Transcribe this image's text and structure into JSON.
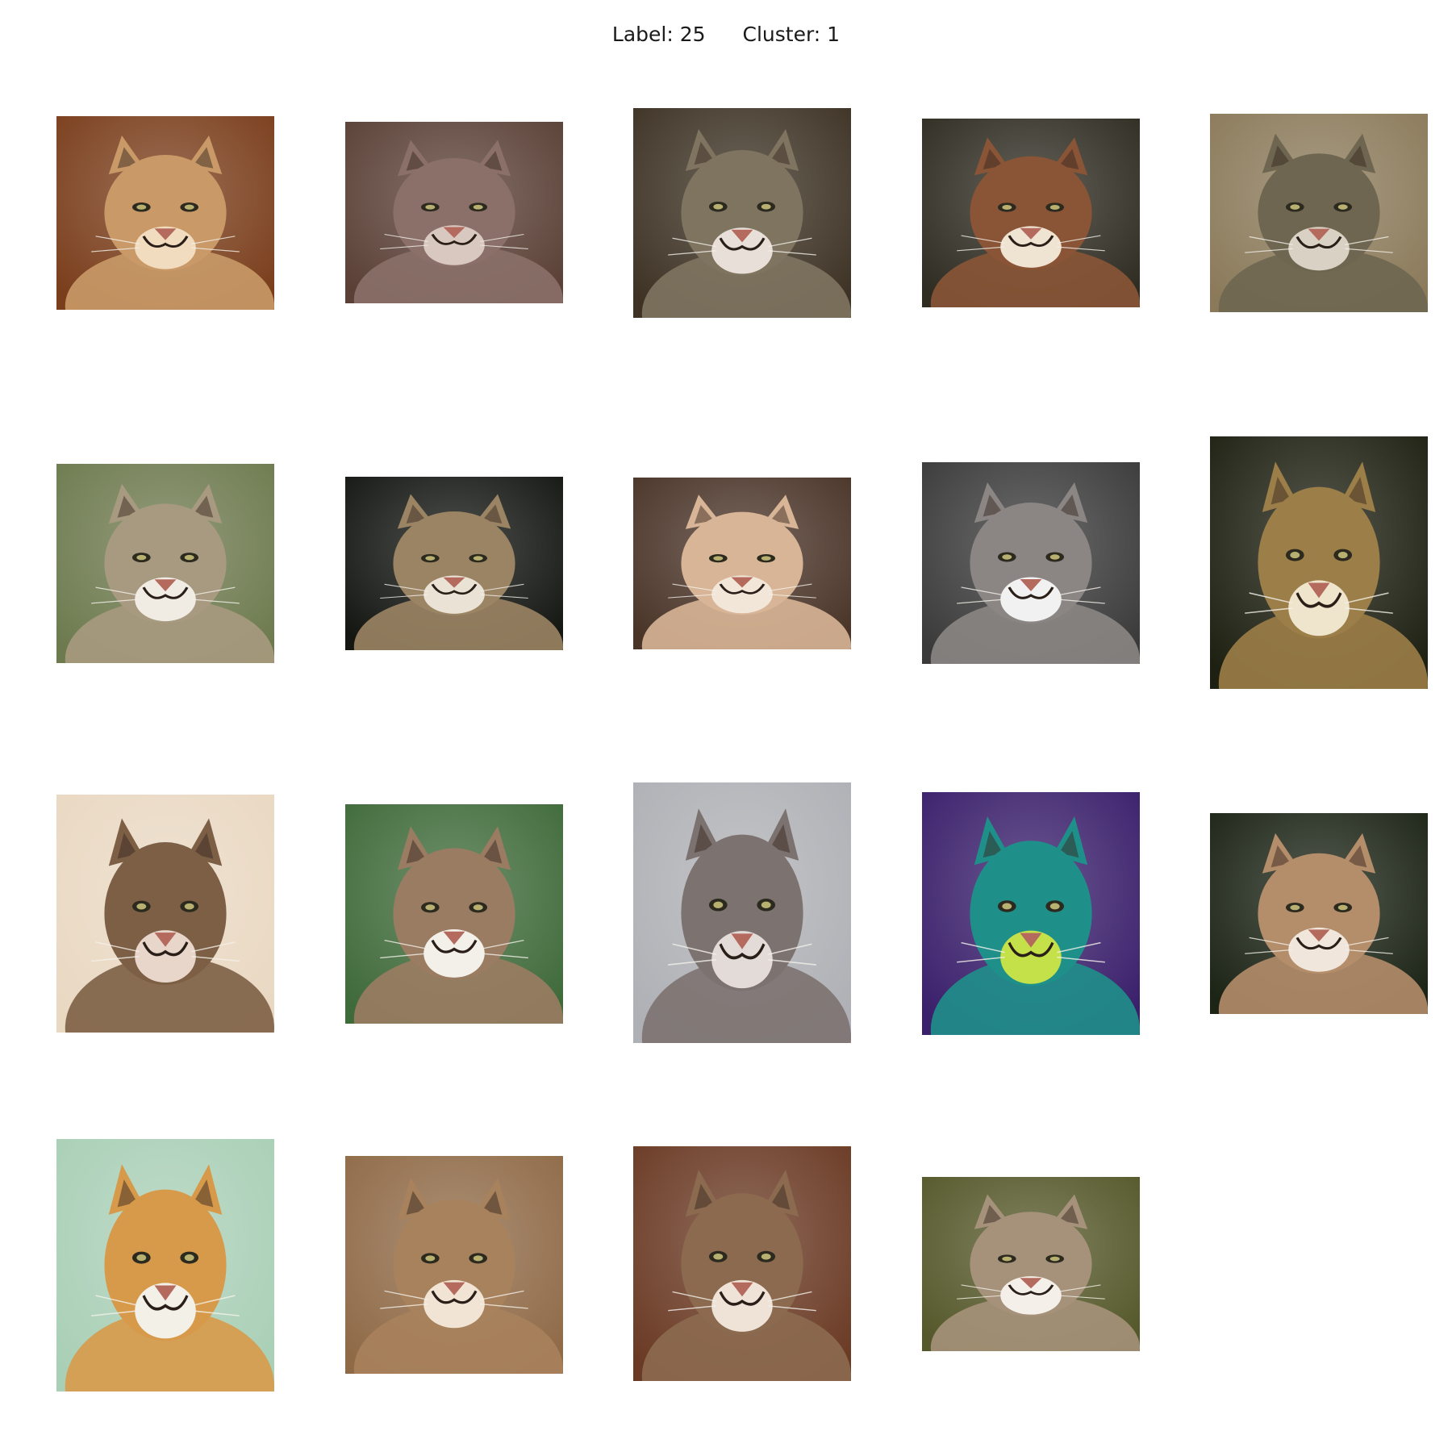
{
  "title": {
    "label_text": "Label: 25",
    "cluster_text": "Cluster: 1"
  },
  "grid": {
    "rows": 4,
    "columns": 5,
    "images": [
      {
        "subject": "cougar",
        "bg": "#7a3e1c",
        "fur": "#c99a68",
        "muzzle": "#f1dcc0"
      },
      {
        "subject": "cougar",
        "bg": "#5a4036",
        "fur": "#8a7068",
        "muzzle": "#d9c8bf"
      },
      {
        "subject": "cougar",
        "bg": "#3d3224",
        "fur": "#7e7460",
        "muzzle": "#e8e0d8"
      },
      {
        "subject": "cougar",
        "bg": "#2f2c22",
        "fur": "#8a5536",
        "muzzle": "#efe3d2"
      },
      {
        "subject": "cougar",
        "bg": "#8b7a5a",
        "fur": "#6e6650",
        "muzzle": "#d9d2c4"
      },
      {
        "subject": "cougar",
        "bg": "#6d7a4e",
        "fur": "#a89a80",
        "muzzle": "#f0ece4"
      },
      {
        "subject": "cougar",
        "bg": "#141612",
        "fur": "#9b8464",
        "muzzle": "#e9e2d5"
      },
      {
        "subject": "cougar",
        "bg": "#4a3428",
        "fur": "#d8b596",
        "muzzle": "#f2e6d8"
      },
      {
        "subject": "cougar",
        "bg": "#3a3a3a",
        "fur": "#8b8684",
        "muzzle": "#f1f1f1"
      },
      {
        "subject": "cougar",
        "bg": "#1e2012",
        "fur": "#9c7e48",
        "muzzle": "#efe4cc"
      },
      {
        "subject": "cougar",
        "bg": "#e9d8c2",
        "fur": "#7d5f45",
        "muzzle": "#e8d6cb"
      },
      {
        "subject": "cougar",
        "bg": "#3f6a3a",
        "fur": "#9a7c62",
        "muzzle": "#f3efe9"
      },
      {
        "subject": "cougar",
        "bg": "#aeb0b5",
        "fur": "#7c7270",
        "muzzle": "#e2dbd8"
      },
      {
        "subject": "cougar",
        "bg": "#3a1f6b",
        "fur": "#1f8f8a",
        "muzzle": "#c4e14a"
      },
      {
        "subject": "cougar",
        "bg": "#1c2416",
        "fur": "#b48d6a",
        "muzzle": "#f1e6dc"
      },
      {
        "subject": "cougar",
        "bg": "#a9cfb6",
        "fur": "#d79a4a",
        "muzzle": "#f3f0e8"
      },
      {
        "subject": "cougar",
        "bg": "#8f6a47",
        "fur": "#a8825c",
        "muzzle": "#f1e4d4"
      },
      {
        "subject": "cougar",
        "bg": "#6a3a24",
        "fur": "#8c6a50",
        "muzzle": "#eee3d6"
      },
      {
        "subject": "cougar",
        "bg": "#55582a",
        "fur": "#a6927a",
        "muzzle": "#f4efe8"
      }
    ]
  }
}
